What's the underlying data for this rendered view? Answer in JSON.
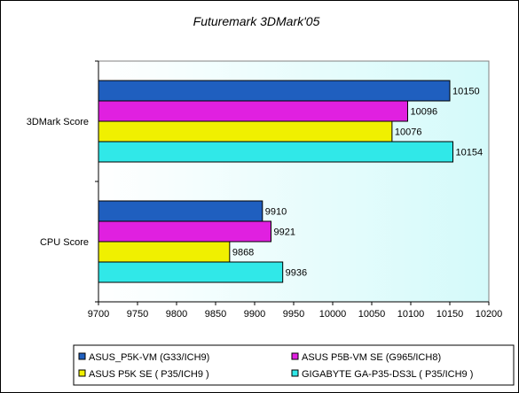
{
  "chart_data": {
    "type": "bar",
    "orientation": "horizontal",
    "title": "Futuremark 3DMark'05",
    "categories": [
      "3DMark Score",
      "CPU Score"
    ],
    "series": [
      {
        "name": "ASUS_P5K-VM (G33/ICH9)",
        "color": "#1f5fbf",
        "values": [
          10150,
          9910
        ]
      },
      {
        "name": "ASUS P5B-VM SE (G965/ICH8)",
        "color": "#e020e0",
        "values": [
          10096,
          9921
        ]
      },
      {
        "name": "ASUS P5K SE ( P35/ICH9 )",
        "color": "#f0f000",
        "values": [
          10076,
          9868
        ]
      },
      {
        "name": "GIGABYTE GA-P35-DS3L ( P35/ICH9 )",
        "color": "#30e8e8",
        "values": [
          10154,
          9936
        ]
      }
    ],
    "xlim": [
      9700,
      10200
    ],
    "xticks": [
      "9700",
      "9750",
      "9800",
      "9850",
      "9900",
      "9950",
      "10000",
      "10050",
      "10100",
      "10150",
      "10200"
    ],
    "legend_position": "bottom",
    "grid": false,
    "plot_background": "gradient-white-to-cyan"
  }
}
